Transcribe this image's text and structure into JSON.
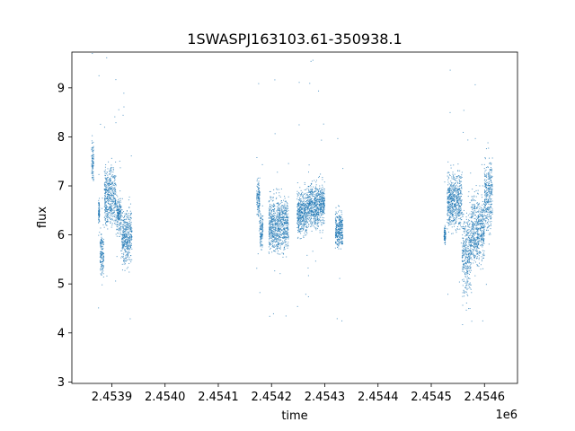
{
  "chart_data": {
    "type": "scatter",
    "title": "1SWASPJ163103.61-350938.1",
    "xlabel": "time",
    "ylabel": "flux",
    "x_offset_label": "1e6",
    "xlim": [
      2453825,
      2454662
    ],
    "ylim": [
      2.97,
      9.73
    ],
    "x_ticks": [
      2453900,
      2454000,
      2454100,
      2454200,
      2454300,
      2454400,
      2454500,
      2454600
    ],
    "x_tick_labels": [
      "2.4539",
      "2.4540",
      "2.4541",
      "2.4542",
      "2.4543",
      "2.4544",
      "2.4545",
      "2.4546"
    ],
    "y_ticks": [
      3,
      4,
      5,
      6,
      7,
      8,
      9
    ],
    "y_tick_labels": [
      "3",
      "4",
      "5",
      "6",
      "7",
      "8",
      "9"
    ],
    "grid": false,
    "marker_color": "#1f77b4",
    "clusters": [
      {
        "x_start": 2453862,
        "x_end": 2453866,
        "y_center": 7.5,
        "y_spread": 0.35
      },
      {
        "x_start": 2453875,
        "x_end": 2453877,
        "y_center": 6.45,
        "y_spread": 0.2
      },
      {
        "x_start": 2453878,
        "x_end": 2453885,
        "y_center": 5.6,
        "y_spread": 0.35
      },
      {
        "x_start": 2453886,
        "x_end": 2453908,
        "y_center": 6.75,
        "y_spread": 0.5
      },
      {
        "x_start": 2453909,
        "x_end": 2453918,
        "y_center": 6.4,
        "y_spread": 0.3
      },
      {
        "x_start": 2453919,
        "x_end": 2453938,
        "y_center": 5.95,
        "y_spread": 0.45
      },
      {
        "x_start": 2454172,
        "x_end": 2454178,
        "y_center": 6.75,
        "y_spread": 0.3
      },
      {
        "x_start": 2454178,
        "x_end": 2454184,
        "y_center": 6.1,
        "y_spread": 0.3
      },
      {
        "x_start": 2454195,
        "x_end": 2454232,
        "y_center": 6.2,
        "y_spread": 0.45
      },
      {
        "x_start": 2454248,
        "x_end": 2454268,
        "y_center": 6.45,
        "y_spread": 0.35
      },
      {
        "x_start": 2454268,
        "x_end": 2454300,
        "y_center": 6.6,
        "y_spread": 0.35
      },
      {
        "x_start": 2454320,
        "x_end": 2454334,
        "y_center": 6.1,
        "y_spread": 0.3
      },
      {
        "x_start": 2454524,
        "x_end": 2454527,
        "y_center": 6.0,
        "y_spread": 0.15
      },
      {
        "x_start": 2454530,
        "x_end": 2454558,
        "y_center": 6.7,
        "y_spread": 0.45
      },
      {
        "x_start": 2454558,
        "x_end": 2454575,
        "y_center": 5.6,
        "y_spread": 0.7
      },
      {
        "x_start": 2454575,
        "x_end": 2454600,
        "y_center": 6.1,
        "y_spread": 0.55
      },
      {
        "x_start": 2454600,
        "x_end": 2454615,
        "y_center": 6.8,
        "y_spread": 0.6
      }
    ]
  }
}
